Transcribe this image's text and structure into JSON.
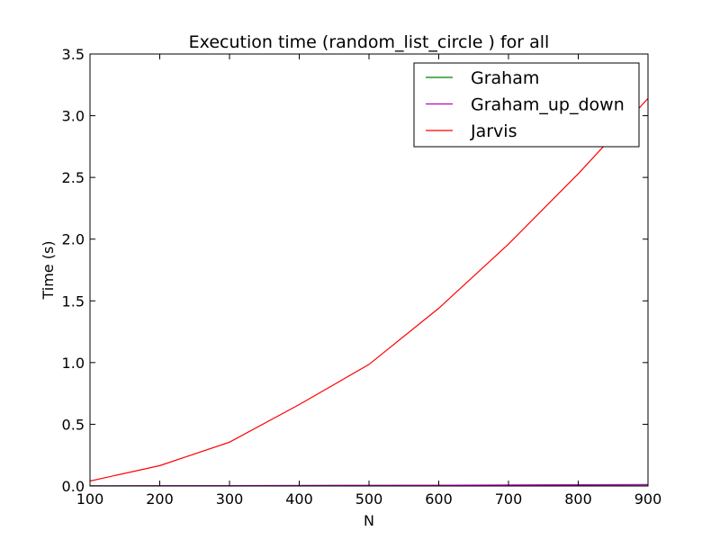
{
  "chart_data": {
    "type": "line",
    "title": "Execution time (random_list_circle ) for all",
    "xlabel": "N",
    "ylabel": "Time (s)",
    "xlim": [
      100,
      900
    ],
    "ylim": [
      0.0,
      3.5
    ],
    "xticks": [
      100,
      200,
      300,
      400,
      500,
      600,
      700,
      800,
      900
    ],
    "xtick_labels": [
      "100",
      "200",
      "300",
      "400",
      "500",
      "600",
      "700",
      "800",
      "900"
    ],
    "yticks": [
      0.0,
      0.5,
      1.0,
      1.5,
      2.0,
      2.5,
      3.0,
      3.5
    ],
    "ytick_labels": [
      "0.0",
      "0.5",
      "1.0",
      "1.5",
      "2.0",
      "2.5",
      "3.0",
      "3.5"
    ],
    "grid": false,
    "legend_position": "top-right",
    "x": [
      100,
      200,
      300,
      400,
      500,
      600,
      700,
      800,
      900
    ],
    "series": [
      {
        "name": "Graham",
        "color": "#008000",
        "values": [
          0.001,
          0.002,
          0.003,
          0.004,
          0.005,
          0.006,
          0.007,
          0.008,
          0.009
        ]
      },
      {
        "name": "Graham_up_down",
        "color": "#bf00bf",
        "values": [
          0.001,
          0.002,
          0.003,
          0.004,
          0.005,
          0.006,
          0.008,
          0.01,
          0.012
        ]
      },
      {
        "name": "Jarvis",
        "color": "#ff0000",
        "values": [
          0.04,
          0.165,
          0.355,
          0.66,
          0.985,
          1.44,
          1.96,
          2.53,
          3.14
        ]
      }
    ]
  }
}
